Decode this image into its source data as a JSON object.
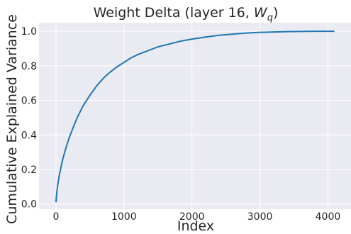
{
  "chart_data": {
    "type": "line",
    "title": {
      "prefix": "Weight Delta (layer 16, ",
      "symbol": "W",
      "subscript": "q",
      "suffix": ")"
    },
    "xlabel": "Index",
    "ylabel": "Cumulative Explained Variance",
    "xlim": [
      -250,
      4350
    ],
    "ylim": [
      -0.03,
      1.05
    ],
    "xticks": [
      0,
      1000,
      2000,
      3000,
      4000
    ],
    "xtick_labels": [
      "0",
      "1000",
      "2000",
      "3000",
      "4000"
    ],
    "yticks": [
      0.0,
      0.2,
      0.4,
      0.6,
      0.8,
      1.0
    ],
    "ytick_labels": [
      "0.0",
      "0.2",
      "0.4",
      "0.6",
      "0.8",
      "1.0"
    ],
    "grid": true,
    "colors": {
      "background": "#eaeaf2",
      "grid": "#ffffff",
      "line": "#1f77b4"
    },
    "series": [
      {
        "x": [
          0,
          10,
          25,
          50,
          100,
          150,
          200,
          300,
          400,
          500,
          600,
          700,
          800,
          900,
          1000,
          1100,
          1200,
          1300,
          1400,
          1500,
          1600,
          1700,
          1800,
          1900,
          2000,
          2200,
          2400,
          2600,
          2800,
          3000,
          3200,
          3400,
          3600,
          3800,
          4000,
          4095
        ],
        "values": [
          0.01,
          0.06,
          0.11,
          0.17,
          0.26,
          0.33,
          0.39,
          0.49,
          0.57,
          0.63,
          0.685,
          0.73,
          0.765,
          0.795,
          0.82,
          0.845,
          0.865,
          0.88,
          0.895,
          0.91,
          0.92,
          0.93,
          0.94,
          0.948,
          0.955,
          0.967,
          0.977,
          0.984,
          0.99,
          0.994,
          0.996,
          0.998,
          0.999,
          1.0,
          1.0,
          1.0
        ]
      }
    ]
  }
}
